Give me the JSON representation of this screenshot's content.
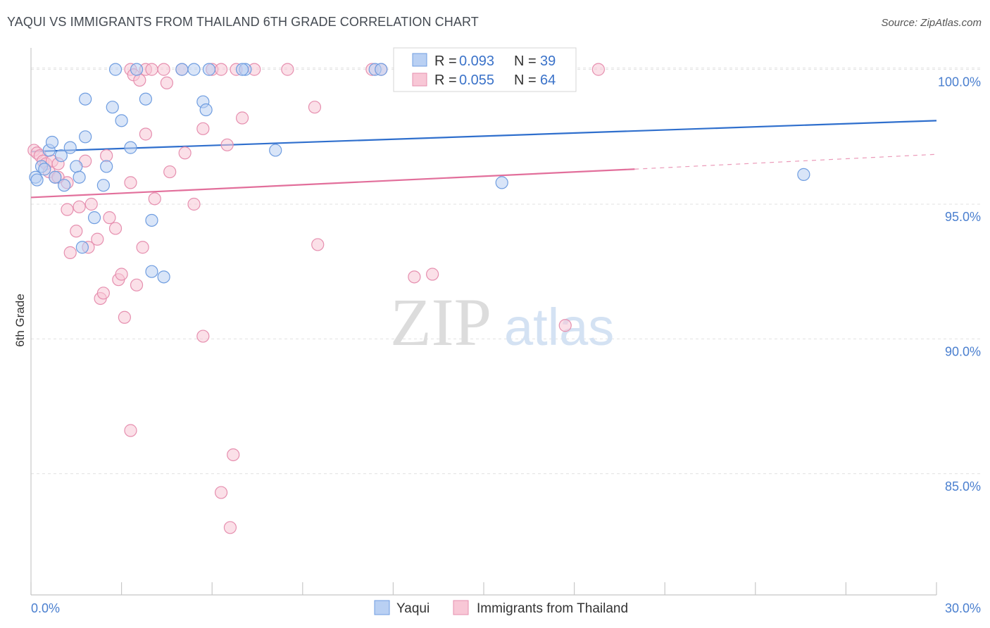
{
  "title": "YAQUI VS IMMIGRANTS FROM THAILAND 6TH GRADE CORRELATION CHART",
  "source": "Source: ZipAtlas.com",
  "watermark": {
    "zip": "ZIP",
    "atlas": "atlas"
  },
  "colors": {
    "yaqui_fill": "#b9d0f3",
    "yaqui_stroke": "#6f9de0",
    "yaqui_line": "#2f6fcd",
    "thai_fill": "#f8c7d6",
    "thai_stroke": "#e68faf",
    "thai_line": "#e26f9b",
    "grid": "#e1e1e1",
    "axis": "#c8c8c8",
    "tick_label": "#4a7fcf"
  },
  "legend": {
    "rows": [
      {
        "r_label": "R =",
        "r_value": "0.093",
        "n_label": "N =",
        "n_value": "39"
      },
      {
        "r_label": "R =",
        "r_value": "0.055",
        "n_label": "N =",
        "n_value": "64"
      }
    ]
  },
  "bottom_legend": [
    "Yaqui",
    "Immigrants from Thailand"
  ],
  "chart_data": {
    "type": "scatter",
    "title": "YAQUI VS IMMIGRANTS FROM THAILAND 6TH GRADE CORRELATION CHART",
    "xlabel": "",
    "ylabel": "6th Grade",
    "xlim": [
      0,
      30
    ],
    "ylim": [
      80.5,
      100.8
    ],
    "x_tick_labels": [
      "0.0%",
      "30.0%"
    ],
    "y_ticks": [
      85,
      90,
      95,
      100
    ],
    "y_tick_labels": [
      "85.0%",
      "90.0%",
      "95.0%",
      "100.0%"
    ],
    "legend_position": "top-center",
    "series": [
      {
        "name": "Yaqui",
        "R": 0.093,
        "N": 39,
        "trend": {
          "x0": 0,
          "y0": 96.95,
          "x1": 30,
          "y1": 98.1
        },
        "points": [
          [
            0.15,
            96.0
          ],
          [
            0.2,
            95.9
          ],
          [
            0.35,
            96.4
          ],
          [
            0.45,
            96.3
          ],
          [
            0.6,
            97.0
          ],
          [
            0.7,
            97.3
          ],
          [
            0.8,
            96.0
          ],
          [
            1.0,
            96.8
          ],
          [
            1.1,
            95.7
          ],
          [
            1.3,
            97.1
          ],
          [
            1.5,
            96.4
          ],
          [
            1.6,
            96.0
          ],
          [
            1.8,
            97.5
          ],
          [
            1.7,
            93.4
          ],
          [
            2.1,
            94.5
          ],
          [
            2.4,
            95.7
          ],
          [
            2.5,
            96.4
          ],
          [
            2.7,
            98.6
          ],
          [
            3.0,
            98.1
          ],
          [
            3.3,
            97.1
          ],
          [
            1.8,
            98.9
          ],
          [
            3.8,
            98.9
          ],
          [
            4.0,
            94.4
          ],
          [
            4.0,
            92.5
          ],
          [
            4.4,
            92.3
          ],
          [
            3.5,
            100.0
          ],
          [
            2.8,
            100.0
          ],
          [
            5.0,
            100.0
          ],
          [
            5.4,
            100.0
          ],
          [
            5.7,
            98.8
          ],
          [
            5.8,
            98.5
          ],
          [
            5.9,
            100.0
          ],
          [
            7.1,
            100.0
          ],
          [
            7.0,
            100.0
          ],
          [
            8.1,
            97.0
          ],
          [
            11.4,
            100.0
          ],
          [
            11.6,
            100.0
          ],
          [
            15.6,
            95.8
          ],
          [
            25.6,
            96.1
          ]
        ]
      },
      {
        "name": "Immigrants from Thailand",
        "R": 0.055,
        "N": 64,
        "trend": {
          "x0": 0,
          "y0": 95.25,
          "x1": 20,
          "y1": 96.3,
          "dash_to_x": 30,
          "dash_to_y": 96.85
        },
        "points": [
          [
            0.1,
            97.0
          ],
          [
            0.2,
            96.9
          ],
          [
            0.3,
            96.8
          ],
          [
            0.4,
            96.6
          ],
          [
            0.5,
            96.5
          ],
          [
            0.6,
            96.2
          ],
          [
            0.7,
            96.6
          ],
          [
            0.8,
            96.0
          ],
          [
            0.9,
            96.5
          ],
          [
            1.2,
            95.8
          ],
          [
            1.3,
            93.2
          ],
          [
            1.5,
            94.0
          ],
          [
            1.6,
            94.9
          ],
          [
            1.9,
            93.4
          ],
          [
            2.0,
            95.0
          ],
          [
            2.2,
            93.7
          ],
          [
            2.3,
            91.5
          ],
          [
            2.4,
            91.7
          ],
          [
            2.6,
            94.5
          ],
          [
            2.8,
            94.1
          ],
          [
            2.9,
            92.2
          ],
          [
            3.0,
            92.4
          ],
          [
            3.1,
            90.8
          ],
          [
            3.3,
            95.8
          ],
          [
            3.5,
            92.0
          ],
          [
            3.7,
            93.4
          ],
          [
            3.8,
            97.6
          ],
          [
            3.3,
            100.0
          ],
          [
            3.4,
            99.8
          ],
          [
            3.8,
            100.0
          ],
          [
            4.0,
            100.0
          ],
          [
            4.4,
            100.0
          ],
          [
            4.5,
            99.5
          ],
          [
            4.6,
            96.2
          ],
          [
            4.1,
            95.2
          ],
          [
            5.0,
            100.0
          ],
          [
            5.1,
            96.9
          ],
          [
            5.4,
            95.0
          ],
          [
            5.7,
            97.8
          ],
          [
            6.0,
            100.0
          ],
          [
            6.3,
            100.0
          ],
          [
            6.5,
            97.2
          ],
          [
            6.8,
            100.0
          ],
          [
            7.0,
            98.2
          ],
          [
            7.4,
            100.0
          ],
          [
            8.5,
            100.0
          ],
          [
            9.4,
            98.6
          ],
          [
            9.5,
            93.5
          ],
          [
            11.3,
            100.0
          ],
          [
            11.6,
            100.0
          ],
          [
            12.7,
            92.3
          ],
          [
            13.3,
            92.4
          ],
          [
            17.7,
            90.5
          ],
          [
            18.8,
            100.0
          ],
          [
            3.3,
            86.6
          ],
          [
            5.7,
            90.1
          ],
          [
            6.7,
            85.7
          ],
          [
            6.3,
            84.3
          ],
          [
            6.6,
            83.0
          ],
          [
            1.2,
            94.8
          ],
          [
            1.8,
            96.6
          ],
          [
            2.5,
            96.8
          ],
          [
            3.6,
            99.6
          ],
          [
            0.9,
            96.0
          ]
        ]
      }
    ]
  }
}
